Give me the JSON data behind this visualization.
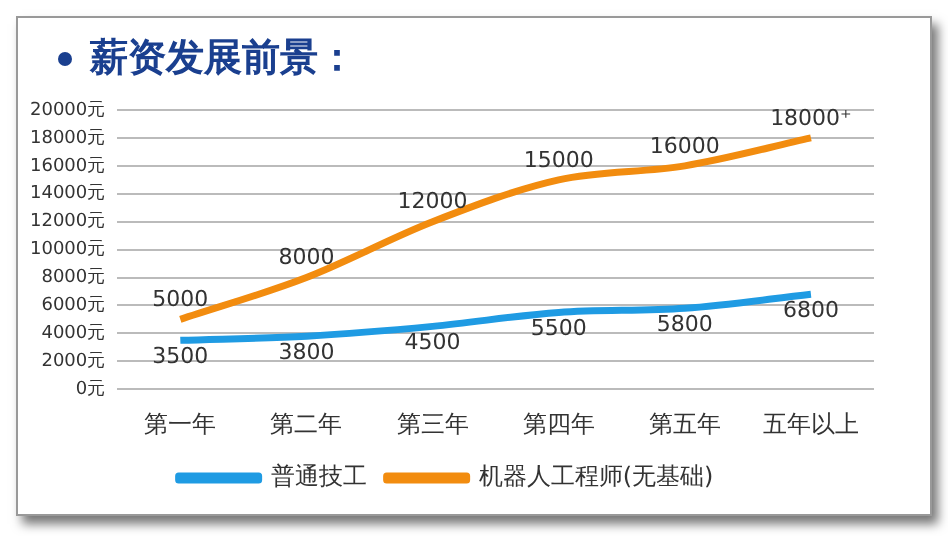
{
  "chart_data": {
    "type": "line",
    "title": "薪资发展前景：",
    "categories": [
      "第一年",
      "第二年",
      "第三年",
      "第四年",
      "第五年",
      "五年以上"
    ],
    "series": [
      {
        "name": "普通技工",
        "color": "#1f9be3",
        "values": [
          3500,
          3800,
          4500,
          5500,
          5800,
          6800
        ]
      },
      {
        "name": "机器人工程师(无基础)",
        "color": "#f28c0f",
        "values": [
          5000,
          8000,
          12000,
          15000,
          16000,
          18000
        ],
        "value_labels": [
          "5000",
          "8000",
          "12000",
          "15000",
          "16000",
          "18000⁺"
        ]
      }
    ],
    "ylim": [
      0,
      20000
    ],
    "yticks": [
      {
        "value": 0,
        "label": "0元"
      },
      {
        "value": 2000,
        "label": "2000元"
      },
      {
        "value": 4000,
        "label": "4000元"
      },
      {
        "value": 6000,
        "label": "6000元"
      },
      {
        "value": 8000,
        "label": "8000元"
      },
      {
        "value": 10000,
        "label": "10000元"
      },
      {
        "value": 12000,
        "label": "12000元"
      },
      {
        "value": 14000,
        "label": "14000元"
      },
      {
        "value": 16000,
        "label": "16000元"
      },
      {
        "value": 18000,
        "label": "18000元"
      },
      {
        "value": 20000,
        "label": "20000元"
      }
    ],
    "grid": "y",
    "legend": "bottom",
    "marker": "none",
    "line_style": "solid",
    "data_labels": true
  }
}
